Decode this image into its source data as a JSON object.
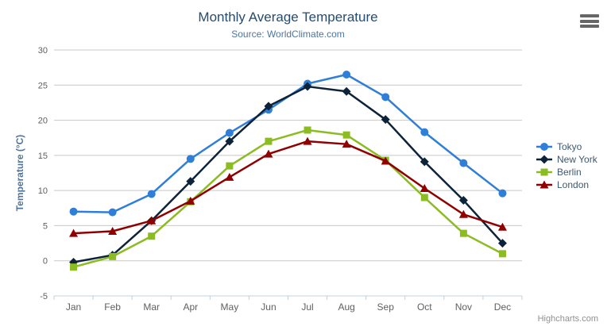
{
  "header": {
    "title": "Monthly Average Temperature",
    "subtitle": "Source: WorldClimate.com"
  },
  "credit": "Highcharts.com",
  "colors": {
    "title": "#274b6d",
    "subtitle": "#4d759e",
    "axis_title": "#4d759e",
    "axis_labels": "#606060",
    "legend_text": "#3e576f",
    "gridline": "#c8c8c8",
    "axis_line": "#c0d0e0",
    "menu_icon": "#666666",
    "credit_text": "#909090",
    "background": "#ffffff"
  },
  "chart_data": {
    "type": "line",
    "title": "Monthly Average Temperature",
    "subtitle": "Source: WorldClimate.com",
    "categories": [
      "Jan",
      "Feb",
      "Mar",
      "Apr",
      "May",
      "Jun",
      "Jul",
      "Aug",
      "Sep",
      "Oct",
      "Nov",
      "Dec"
    ],
    "xlabel": "",
    "ylabel": "Temperature (°C)",
    "ylim": [
      -5,
      30
    ],
    "y_tick_interval": 5,
    "grid": true,
    "legend_position": "right",
    "series": [
      {
        "name": "Tokyo",
        "color": "#2f7ed8",
        "marker": "circle",
        "values": [
          7.0,
          6.9,
          9.5,
          14.5,
          18.2,
          21.5,
          25.2,
          26.5,
          23.3,
          18.3,
          13.9,
          9.6
        ]
      },
      {
        "name": "New York",
        "color": "#0d233a",
        "marker": "diamond",
        "values": [
          -0.2,
          0.8,
          5.7,
          11.3,
          17.0,
          22.0,
          24.8,
          24.1,
          20.1,
          14.1,
          8.6,
          2.5
        ]
      },
      {
        "name": "Berlin",
        "color": "#8bbc21",
        "marker": "square",
        "values": [
          -0.9,
          0.6,
          3.5,
          8.4,
          13.5,
          17.0,
          18.6,
          17.9,
          14.3,
          9.0,
          3.9,
          1.0
        ]
      },
      {
        "name": "London",
        "color": "#910000",
        "marker": "triangle",
        "values": [
          3.9,
          4.2,
          5.7,
          8.5,
          11.9,
          15.2,
          17.0,
          16.6,
          14.2,
          10.3,
          6.6,
          4.8
        ]
      }
    ]
  }
}
